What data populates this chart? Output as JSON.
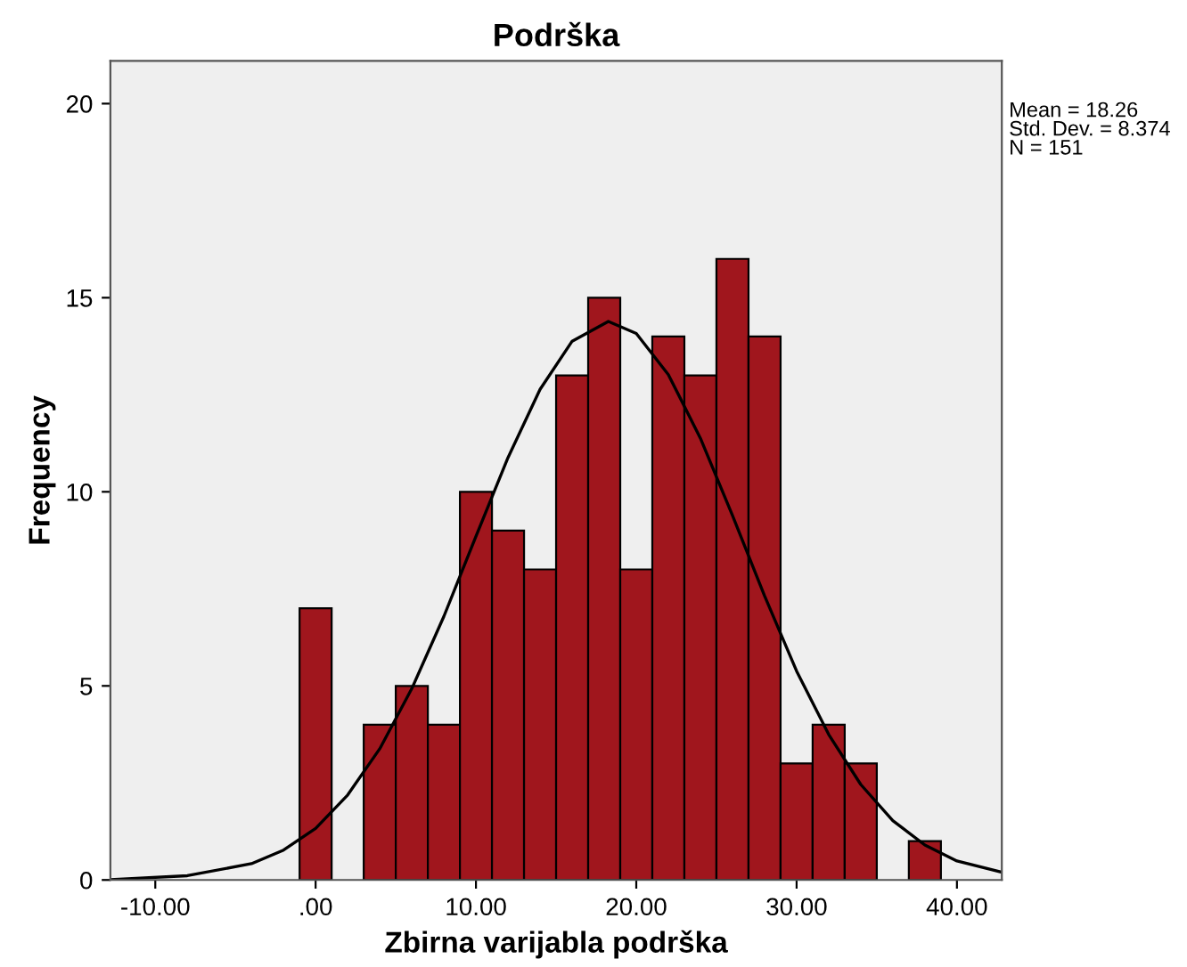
{
  "chart_data": {
    "type": "histogram",
    "title": "Podrška",
    "xlabel": "Zbirna varijabla podrška",
    "ylabel": "Frequency",
    "bins": [
      -1,
      1,
      3,
      5,
      7,
      9,
      11,
      13,
      15,
      17,
      19,
      21,
      23,
      25,
      27,
      29,
      31,
      33,
      35,
      37,
      39
    ],
    "values": [
      7,
      0,
      4,
      5,
      4,
      10,
      9,
      8,
      13,
      15,
      8,
      14,
      13,
      16,
      14,
      3,
      4,
      3,
      0,
      1
    ],
    "color": "#a0161d",
    "series": [
      {
        "type": "line",
        "color": "#000000",
        "x": [
          -12.8,
          -8,
          -4,
          -2,
          0,
          2,
          4,
          6,
          8,
          10,
          12,
          14,
          16,
          18.26,
          20,
          22,
          24,
          26,
          28,
          30,
          32,
          34,
          36,
          38,
          40,
          42.8
        ],
        "values": [
          0.01,
          0.11,
          0.42,
          0.77,
          1.33,
          2.19,
          3.38,
          4.93,
          6.79,
          8.85,
          10.88,
          12.64,
          13.88,
          14.39,
          14.08,
          13.02,
          11.38,
          9.39,
          7.32,
          5.38,
          3.75,
          2.46,
          1.53,
          0.9,
          0.49,
          0.2
        ]
      }
    ],
    "xlim": [
      -12.8,
      42.8
    ],
    "ylim": [
      0,
      21.1
    ],
    "xticks": [
      {
        "value": -10,
        "label": "-10.00"
      },
      {
        "value": 0,
        "label": ".00"
      },
      {
        "value": 10,
        "label": "10.00"
      },
      {
        "value": 20,
        "label": "20.00"
      },
      {
        "value": 30,
        "label": "30.00"
      },
      {
        "value": 40,
        "label": "40.00"
      }
    ],
    "yticks": [
      0,
      5,
      10,
      15,
      20
    ],
    "annotations": [
      "Mean = 18.26\nStd. Dev. = 8.374\nN = 151"
    ],
    "grid": false,
    "legend": false
  }
}
